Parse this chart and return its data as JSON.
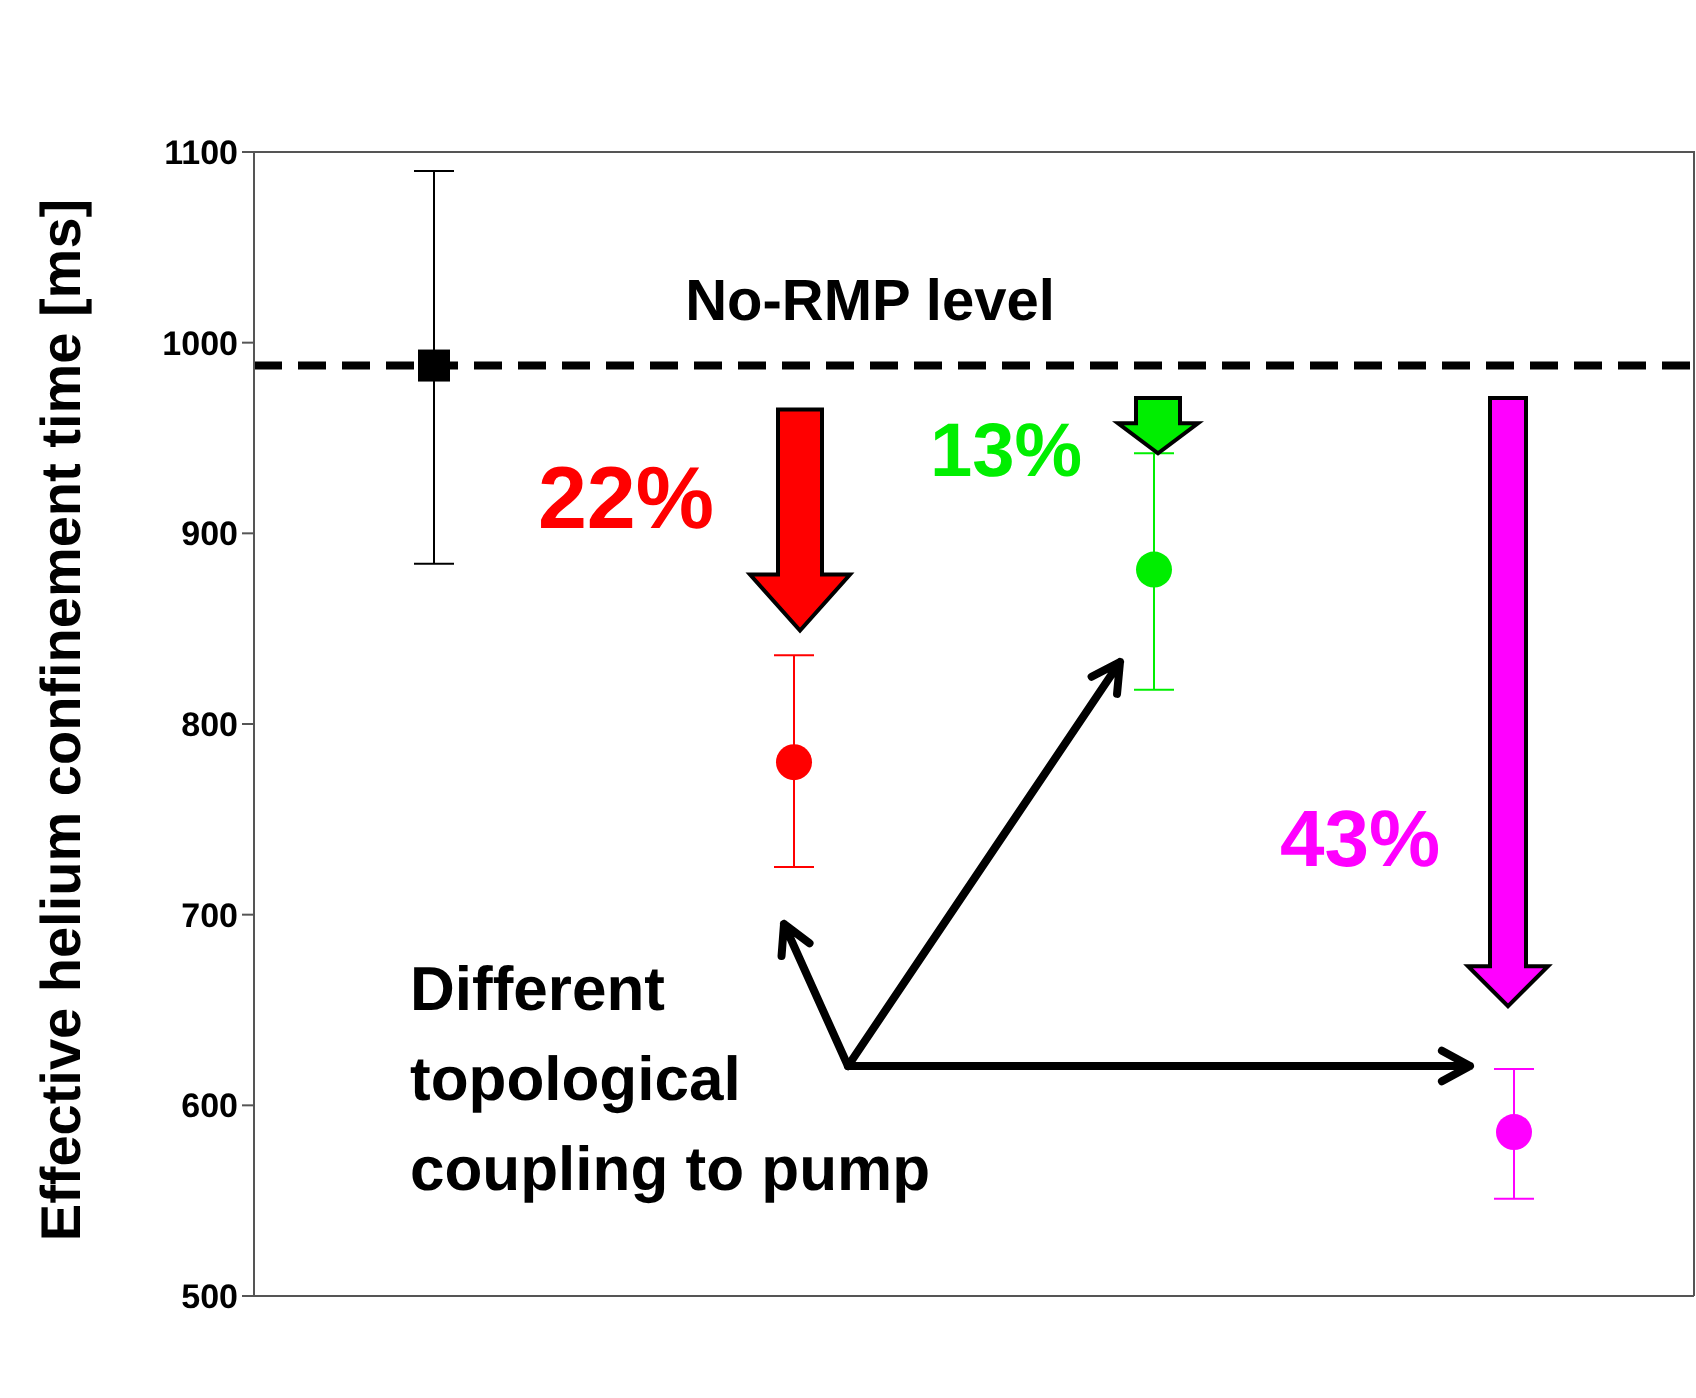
{
  "chart_data": {
    "type": "scatter",
    "ylabel": "Effective helium confinement time [ms]",
    "categories": [
      null,
      null,
      null,
      null,
      null,
      null,
      null
    ],
    "series": [
      {
        "color": "#000000",
        "marker": "square",
        "values": [
          988,
          null,
          null,
          null,
          null,
          null,
          null
        ],
        "errors": [
          [
            884,
            1090
          ],
          null,
          null,
          null,
          null,
          null,
          null
        ]
      },
      {
        "color": "#ff0000",
        "marker": "circle",
        "values": [
          null,
          null,
          780,
          null,
          null,
          null,
          null
        ],
        "errors": [
          null,
          null,
          [
            725,
            836
          ],
          null,
          null,
          null,
          null
        ]
      },
      {
        "color": "#00ee00",
        "marker": "circle",
        "values": [
          null,
          null,
          null,
          null,
          881,
          null,
          null
        ],
        "errors": [
          null,
          null,
          null,
          null,
          [
            818,
            942
          ],
          null,
          null
        ]
      },
      {
        "color": "#ff00ff",
        "marker": "circle",
        "values": [
          null,
          null,
          null,
          null,
          null,
          null,
          586
        ],
        "errors": [
          null,
          null,
          null,
          null,
          null,
          null,
          [
            551,
            619
          ]
        ]
      }
    ],
    "ylim": [
      500,
      1100
    ],
    "yticks": [
      500,
      600,
      700,
      800,
      900,
      1000,
      1100
    ],
    "ref_lines": [
      {
        "axis": "y",
        "value": 988,
        "label": "No-RMP level",
        "color": "#000000",
        "line_style": "dashed"
      }
    ],
    "annotations": [
      "22%",
      "13%",
      "43%",
      "Different topological coupling to pump"
    ],
    "tick_labels": "y"
  }
}
